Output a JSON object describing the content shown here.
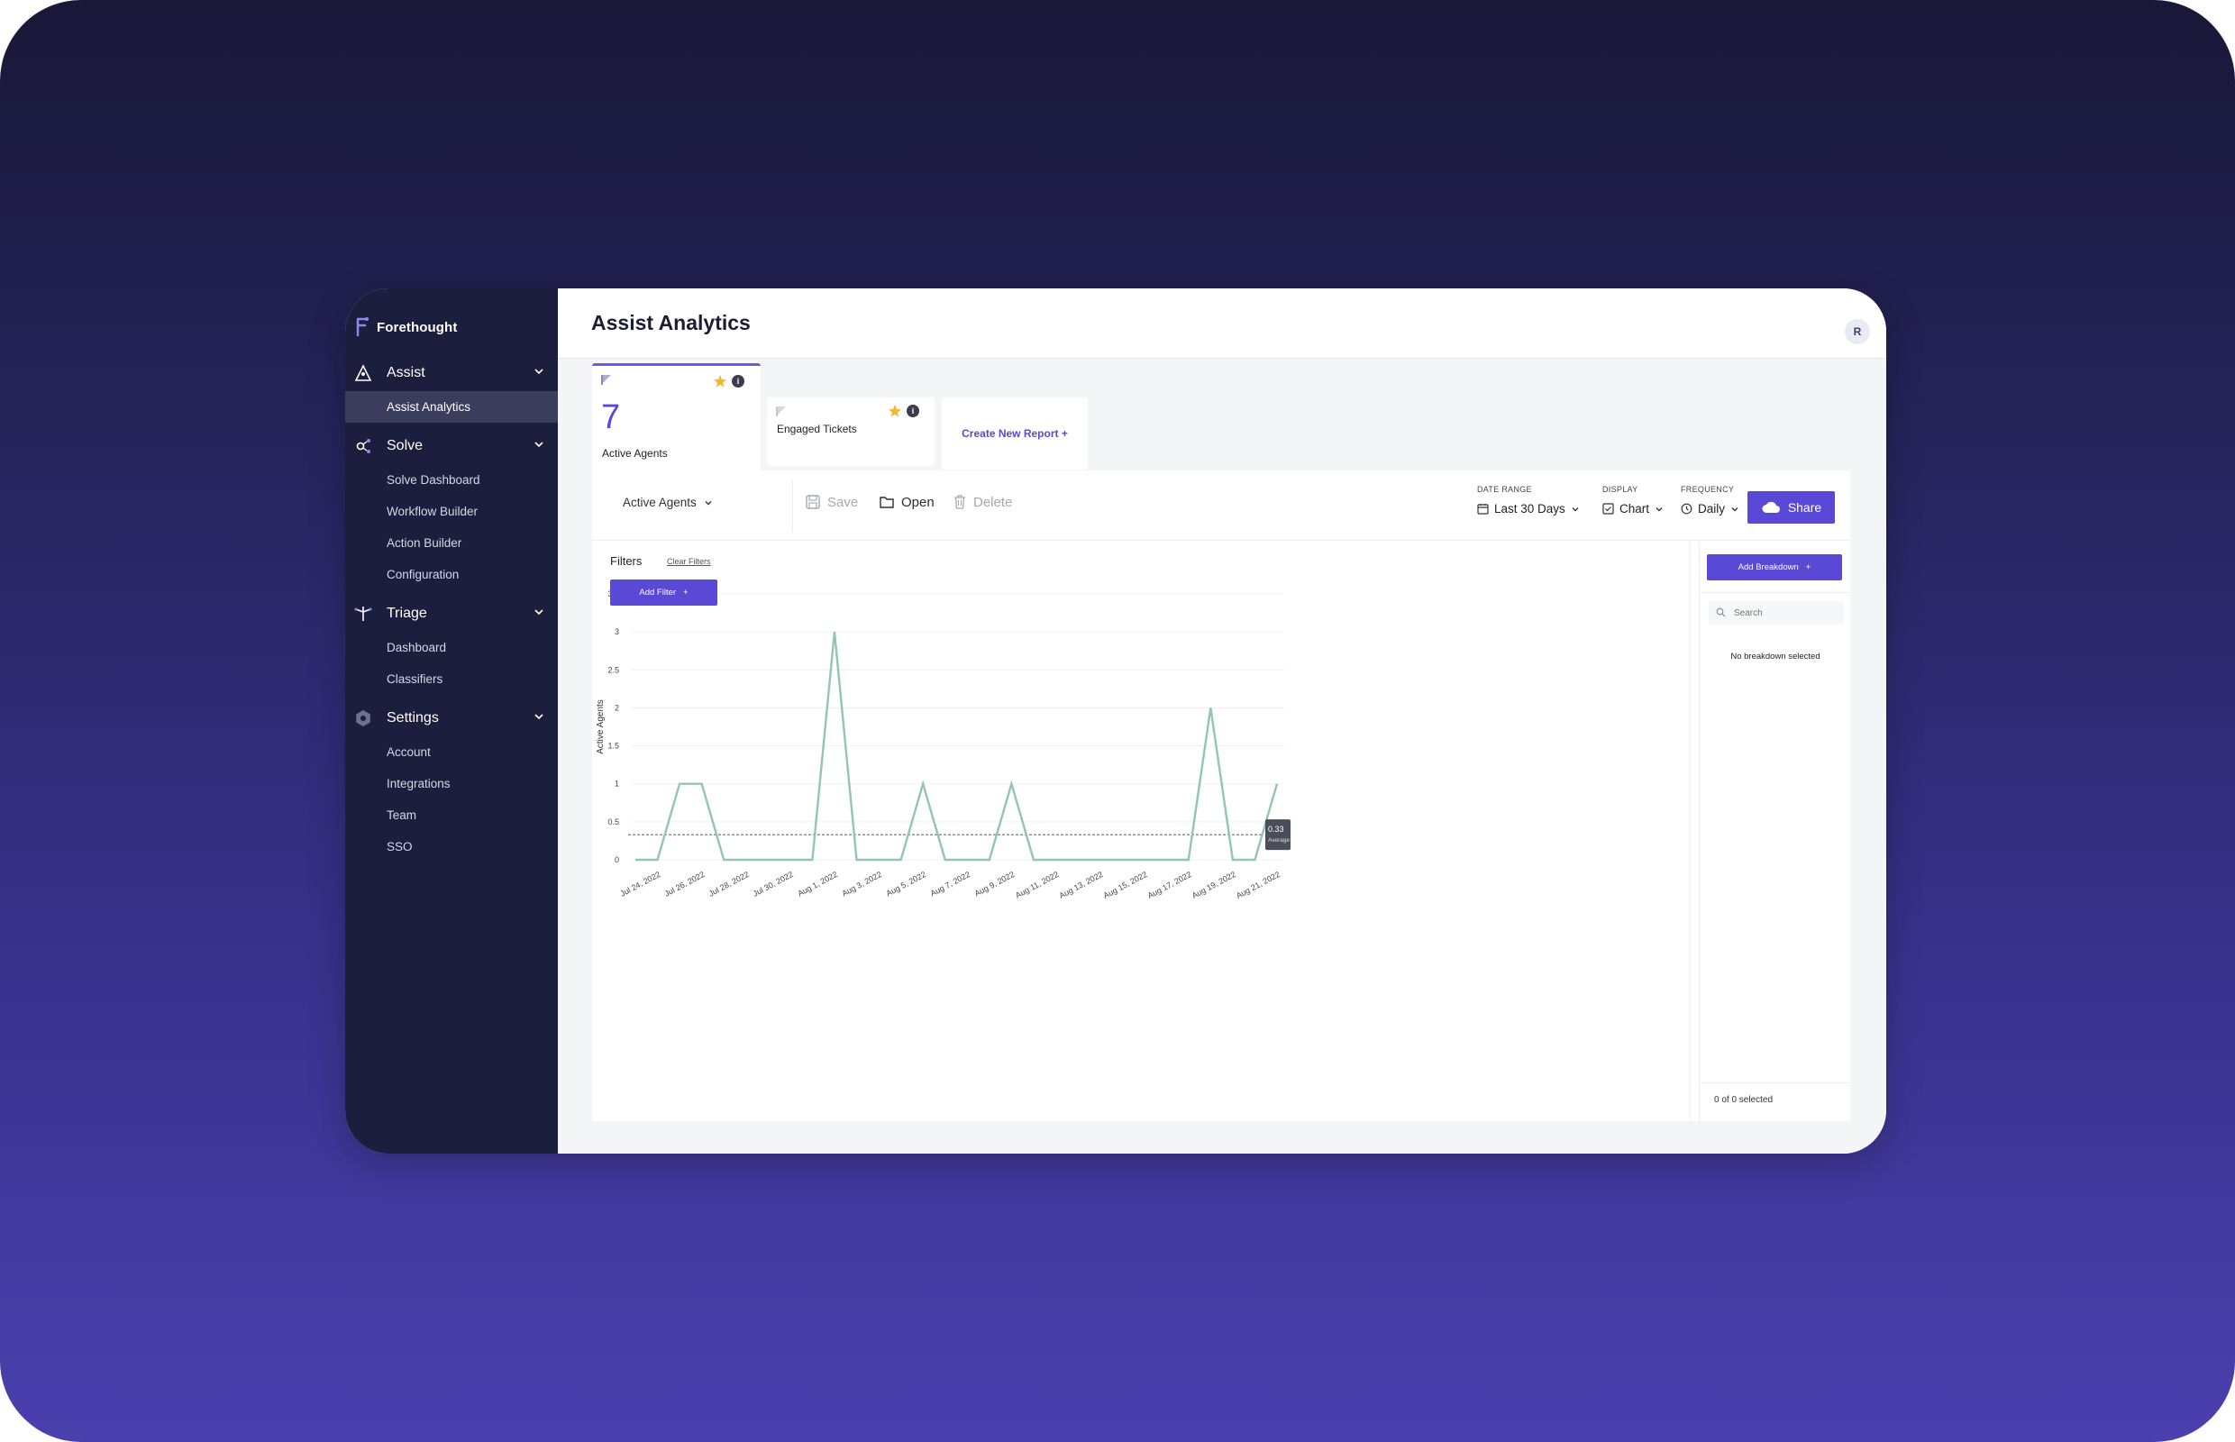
{
  "sidebar": {
    "brand": "Forethought",
    "sections": [
      {
        "label": "Assist",
        "icon": "assist-icon",
        "items": [
          {
            "label": "Assist Analytics",
            "active": true
          }
        ]
      },
      {
        "label": "Solve",
        "icon": "solve-icon",
        "items": [
          {
            "label": "Solve Dashboard"
          },
          {
            "label": "Workflow Builder"
          },
          {
            "label": "Action Builder"
          },
          {
            "label": "Configuration"
          }
        ]
      },
      {
        "label": "Triage",
        "icon": "triage-icon",
        "items": [
          {
            "label": "Dashboard"
          },
          {
            "label": "Classifiers"
          }
        ]
      },
      {
        "label": "Settings",
        "icon": "settings-icon",
        "items": [
          {
            "label": "Account"
          },
          {
            "label": "Integrations"
          },
          {
            "label": "Team"
          },
          {
            "label": "SSO"
          }
        ]
      }
    ]
  },
  "header": {
    "title": "Assist Analytics",
    "avatar": "R"
  },
  "cards": [
    {
      "value": "7",
      "label": "Active Agents",
      "starred": true,
      "info": "i"
    },
    {
      "label": "Engaged Tickets",
      "starred": true,
      "info": "i"
    }
  ],
  "create_card": {
    "label": "Create New Report +"
  },
  "toolbar": {
    "metric": "Active Agents",
    "save": "Save",
    "open": "Open",
    "delete": "Delete",
    "date_range_caption": "DATE RANGE",
    "date_range": "Last 30 Days",
    "display_caption": "DISPLAY",
    "display": "Chart",
    "frequency_caption": "FREQUENCY",
    "frequency": "Daily",
    "share": "Share"
  },
  "filters": {
    "label": "Filters",
    "clear": "Clear Filters",
    "add": "Add Filter"
  },
  "breakdown": {
    "add": "Add Breakdown",
    "search_placeholder": "Search",
    "empty": "No breakdown selected",
    "selected": "0 of 0 selected"
  },
  "colors": {
    "accent": "#5a48d6",
    "line": "#94c4b6",
    "sidebar": "#1b1e3d"
  },
  "chart_data": {
    "type": "line",
    "ylabel": "Active Agents",
    "ylim": [
      0,
      3.5
    ],
    "yticks": [
      "0",
      "0.5",
      "1",
      "1.5",
      "2",
      "2.5",
      "3",
      "3.5"
    ],
    "xtick_labels": [
      "Jul 24, 2022",
      "Jul 26, 2022",
      "Jul 28, 2022",
      "Jul 30, 2022",
      "Aug 1, 2022",
      "Aug 3, 2022",
      "Aug 5, 2022",
      "Aug 7, 2022",
      "Aug 9, 2022",
      "Aug 11, 2022",
      "Aug 13, 2022",
      "Aug 15, 2022",
      "Aug 17, 2022",
      "Aug 19, 2022",
      "Aug 21, 2022"
    ],
    "x": [
      "Jul 23, 2022",
      "Jul 24, 2022",
      "Jul 25, 2022",
      "Jul 26, 2022",
      "Jul 27, 2022",
      "Jul 28, 2022",
      "Jul 29, 2022",
      "Jul 30, 2022",
      "Jul 31, 2022",
      "Aug 1, 2022",
      "Aug 2, 2022",
      "Aug 3, 2022",
      "Aug 4, 2022",
      "Aug 5, 2022",
      "Aug 6, 2022",
      "Aug 7, 2022",
      "Aug 8, 2022",
      "Aug 9, 2022",
      "Aug 10, 2022",
      "Aug 11, 2022",
      "Aug 12, 2022",
      "Aug 13, 2022",
      "Aug 14, 2022",
      "Aug 15, 2022",
      "Aug 16, 2022",
      "Aug 17, 2022",
      "Aug 18, 2022",
      "Aug 19, 2022",
      "Aug 20, 2022",
      "Aug 21, 2022"
    ],
    "values": [
      0,
      0,
      1,
      1,
      0,
      0,
      0,
      0,
      0,
      3,
      0,
      0,
      0,
      1,
      0,
      0,
      0,
      1,
      0,
      0,
      0,
      0,
      0,
      0,
      0,
      0,
      2,
      0,
      0,
      1
    ],
    "average": {
      "value": 0.33,
      "label": "0.33",
      "caption": "Average"
    },
    "grid": true
  }
}
